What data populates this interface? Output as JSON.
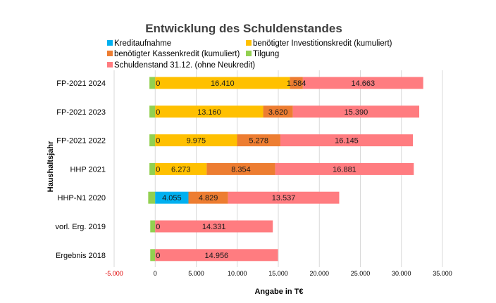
{
  "chart_data": {
    "type": "bar",
    "orientation": "horizontal",
    "stacked": true,
    "title": "Entwicklung des Schuldenstandes",
    "xlabel": "Angabe in T€",
    "ylabel": "Haushaltsjahr",
    "xlim": [
      -5000,
      35000
    ],
    "x_ticks": [
      -5000,
      0,
      5000,
      10000,
      15000,
      20000,
      25000,
      30000,
      35000
    ],
    "x_tick_labels": [
      "-5.000",
      "0",
      "5.000",
      "10.000",
      "15.000",
      "20.000",
      "25.000",
      "30.000",
      "35.000"
    ],
    "grid": true,
    "legend_position": "top",
    "categories": [
      "FP-2021 2024",
      "FP-2021 2023",
      "FP-2021 2022",
      "HHP 2021",
      "HHP-N1 2020",
      "vorl. Erg. 2019",
      "Ergebnis 2018"
    ],
    "series": [
      {
        "name": "Tilgung",
        "color": "#92d050",
        "values": [
          -700,
          -700,
          -700,
          -700,
          -850,
          -600,
          -600
        ],
        "labels": [
          "",
          "",
          "",
          "",
          "",
          "",
          ""
        ]
      },
      {
        "name": "Kreditaufnahme",
        "color": "#00b0f0",
        "values": [
          0,
          0,
          0,
          0,
          4055,
          0,
          0
        ],
        "labels": [
          "0",
          "0",
          "0",
          "0",
          "4.055",
          "0",
          "0"
        ]
      },
      {
        "name": "benötigter Investitionskredit (kumuliert)",
        "color": "#ffc000",
        "values": [
          16410,
          13160,
          9975,
          6273,
          0,
          0,
          0
        ],
        "labels": [
          "16.410",
          "13.160",
          "9.975",
          "6.273",
          "",
          "",
          ""
        ]
      },
      {
        "name": "benötigter Kassenkredit (kumuliert)",
        "color": "#ed7d31",
        "values": [
          1584,
          3620,
          5278,
          8354,
          4829,
          0,
          0
        ],
        "labels": [
          "1.584",
          "3.620",
          "5.278",
          "8.354",
          "4.829",
          "",
          ""
        ]
      },
      {
        "name": "Schuldenstand 31.12. (ohne Neukredit)",
        "color": "#ff7c80",
        "values": [
          14663,
          15390,
          16145,
          16881,
          13537,
          14331,
          14956
        ],
        "labels": [
          "14.663",
          "15.390",
          "16.145",
          "16.881",
          "13.537",
          "14.331",
          "14.956"
        ]
      }
    ],
    "legend_order": [
      "Kreditaufnahme",
      "benötigter Investitionskredit (kumuliert)",
      "benötigter Kassenkredit (kumuliert)",
      "Tilgung",
      "Schuldenstand 31.12. (ohne Neukredit)"
    ]
  }
}
